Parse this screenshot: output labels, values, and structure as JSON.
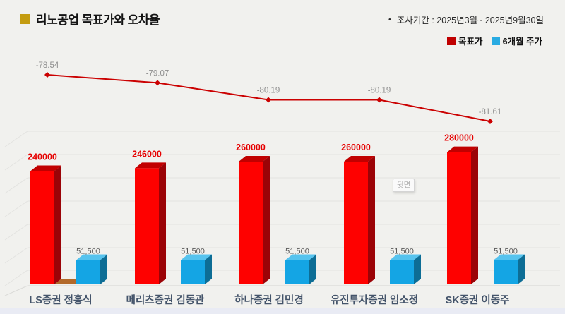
{
  "header": {
    "title": "리노공업 목표가와 오차율"
  },
  "meta": {
    "bullet": "•",
    "survey_period": "조사기간 : 2025년3월~ 2025년9월30일"
  },
  "legend": {
    "items": [
      {
        "label": "목표가",
        "color": "#c00000"
      },
      {
        "label": "6개월 주가",
        "color": "#29abe2"
      }
    ]
  },
  "tooltip": {
    "label": "뒷면"
  },
  "chart_data": {
    "type": "bar",
    "variant": "3d-bars-with-line-overlay",
    "title": "리노공업 목표가와 오차율",
    "categories": [
      "LS증권 정홍식",
      "메리츠증권 김동관",
      "하나증권 김민경",
      "유진투자증권 임소정",
      "SK증권 이동주"
    ],
    "series": [
      {
        "name": "목표가",
        "type": "bar",
        "color": "#fe0100",
        "values": [
          240000,
          246000,
          260000,
          260000,
          280000
        ],
        "value_labels": [
          "240000",
          "246000",
          "260000",
          "260000",
          "280000"
        ]
      },
      {
        "name": "6개월 주가",
        "type": "bar",
        "color": "#29abe2",
        "values": [
          51500,
          51500,
          51500,
          51500,
          51500
        ],
        "value_labels": [
          "51,500",
          "51,500",
          "51,500",
          "51,500",
          "51,500"
        ]
      },
      {
        "name": "오차율",
        "type": "line",
        "color": "#cb0101",
        "values": [
          -78.54,
          -79.07,
          -80.19,
          -80.19,
          -81.61
        ],
        "value_labels": [
          "-78.54",
          "-79.07",
          "-80.19",
          "-80.19",
          "-81.61"
        ]
      }
    ],
    "ylim": [
      0,
      350000
    ],
    "grid": true,
    "legend_position": "top-right"
  }
}
